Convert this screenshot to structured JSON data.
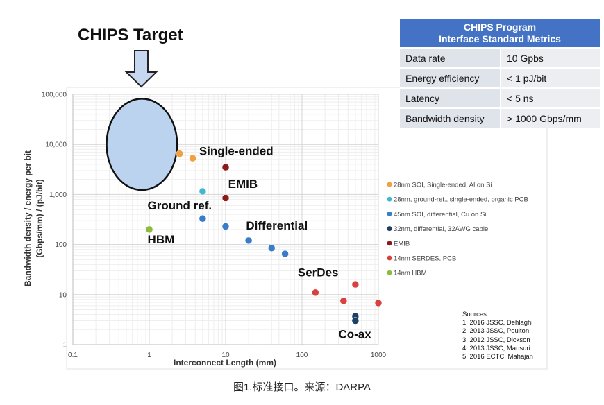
{
  "target_label": "CHIPS Target",
  "metrics": {
    "title_line1": "CHIPS Program",
    "title_line2": "Interface Standard Metrics",
    "rows": [
      {
        "label": "Data rate",
        "value": "10 Gpbs"
      },
      {
        "label": "Energy efficiency",
        "value": "< 1 pJ/bit"
      },
      {
        "label": "Latency",
        "value": "< 5 ns"
      },
      {
        "label": "Bandwidth density",
        "value": "> 1000 Gbps/mm"
      }
    ]
  },
  "sources": {
    "heading": "Sources:",
    "items": [
      "1. 2016 JSSC, Dehlaghi",
      "2. 2013 JSSC, Poulton",
      "3. 2012 JSSC, Dickson",
      "4. 2013 JSSC, Mansuri",
      "5. 2016 ECTC, Mahajan"
    ]
  },
  "caption": "图1.标准接口。来源：DARPA",
  "colors": {
    "target_fill": "#bcd3f0",
    "table_header": "#4472c4"
  },
  "chart_data": {
    "type": "scatter",
    "x_scale": "log",
    "y_scale": "log",
    "xlim": [
      0.1,
      1000
    ],
    "ylim": [
      1,
      100000
    ],
    "xlabel": "Interconnect Length (mm)",
    "ylabel_line1": "Bandwidth density / energy per bit",
    "ylabel_line2": "(Gbps/mm) / (pJ/bit)",
    "x_ticks": [
      0.1,
      1,
      10,
      100,
      1000
    ],
    "x_tick_labels": [
      "0.1",
      "1",
      "10",
      "100",
      "1000"
    ],
    "y_ticks": [
      1,
      10,
      100,
      1000,
      10000,
      100000
    ],
    "y_tick_labels": [
      "1",
      "10",
      "100",
      "1,000",
      "10,000",
      "100,000"
    ],
    "grid": true,
    "legend_position": "right",
    "series": [
      {
        "name": "28nm SOI, Single-ended, Al on Si",
        "color": "#f0a040",
        "points": [
          {
            "x": 2.5,
            "y": 6500
          },
          {
            "x": 3.7,
            "y": 5300
          }
        ]
      },
      {
        "name": "28nm, ground-ref., single-ended, organic PCB",
        "color": "#3fb8d0",
        "points": [
          {
            "x": 5,
            "y": 1150
          }
        ]
      },
      {
        "name": "45nm SOI, differential, Cu on Si",
        "color": "#3a7cc8",
        "points": [
          {
            "x": 5,
            "y": 330
          },
          {
            "x": 10,
            "y": 230
          },
          {
            "x": 20,
            "y": 120
          },
          {
            "x": 40,
            "y": 85
          },
          {
            "x": 60,
            "y": 65
          }
        ]
      },
      {
        "name": "32nm, differential, 32AWG cable",
        "color": "#1e3f66",
        "points": [
          {
            "x": 500,
            "y": 3.7
          },
          {
            "x": 500,
            "y": 3.0
          }
        ]
      },
      {
        "name": "EMIB",
        "color": "#8c1a1a",
        "points": [
          {
            "x": 10,
            "y": 3500
          },
          {
            "x": 10,
            "y": 850
          }
        ]
      },
      {
        "name": "14nm SERDES, PCB",
        "color": "#d94040",
        "points": [
          {
            "x": 150,
            "y": 11
          },
          {
            "x": 350,
            "y": 7.5
          },
          {
            "x": 500,
            "y": 16
          },
          {
            "x": 1000,
            "y": 6.8
          }
        ]
      },
      {
        "name": "14nm HBM",
        "color": "#8dbb3a",
        "points": [
          {
            "x": 1,
            "y": 200
          }
        ]
      }
    ],
    "annotations": [
      {
        "text": "Single-ended",
        "x": 4.5,
        "y": 6100
      },
      {
        "text": "EMIB",
        "x": 10.8,
        "y": 1350
      },
      {
        "text": "Ground ref.",
        "x": 0.95,
        "y": 500
      },
      {
        "text": "HBM",
        "x": 0.95,
        "y": 105
      },
      {
        "text": "Differential",
        "x": 18.5,
        "y": 200
      },
      {
        "text": "SerDes",
        "x": 88,
        "y": 23
      },
      {
        "text": "Co-ax",
        "x": 300,
        "y": 1.35
      }
    ],
    "target_region": {
      "x": 0.8,
      "y": 10000,
      "x_range": [
        0.28,
        2.35
      ],
      "y_range": [
        1200,
        80000
      ]
    }
  }
}
